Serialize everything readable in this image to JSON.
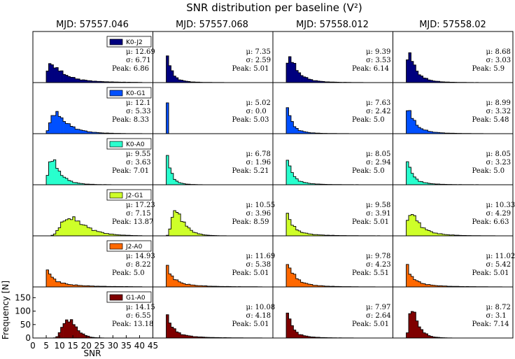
{
  "chart_data": {
    "type": "bar",
    "title": "SNR distribution per baseline (V²)",
    "xlabel": "SNR",
    "ylabel": "Frequency [N]",
    "xlim": [
      0,
      45
    ],
    "ylim": [
      0,
      190
    ],
    "xticks": [
      "0",
      "5",
      "10",
      "15",
      "20",
      "25",
      "30",
      "35",
      "40",
      "45"
    ],
    "yticks": [
      "0",
      "50",
      "100",
      "150"
    ],
    "columns": [
      "MJD: 57557.046",
      "MJD: 57557.068",
      "MJD: 57558.012",
      "MJD: 57558.02"
    ],
    "stat_labels": {
      "mu": "μ:",
      "sigma": "σ:",
      "peak": "Peak:"
    },
    "panels": [
      {
        "baseline": "K0-J2",
        "color": "#00007f",
        "stats": [
          [
            "12.69",
            "6.71",
            "6.86"
          ],
          [
            "7.35",
            "2.59",
            "5.01"
          ],
          [
            "9.39",
            "3.53",
            "6.14"
          ],
          [
            "8.68",
            "3.03",
            "5.9"
          ]
        ]
      },
      {
        "baseline": "K0-G1",
        "color": "#0050ff",
        "stats": [
          [
            "12.1",
            "5.33",
            "8.33"
          ],
          [
            "5.02",
            "0.0",
            "5.03"
          ],
          [
            "7.63",
            "2.42",
            "5.0"
          ],
          [
            "8.99",
            "3.32",
            "5.48"
          ]
        ]
      },
      {
        "baseline": "K0-A0",
        "color": "#29ffce",
        "stats": [
          [
            "9.55",
            "3.63",
            "7.01"
          ],
          [
            "6.78",
            "1.96",
            "5.21"
          ],
          [
            "8.05",
            "2.94",
            "5.0"
          ],
          [
            "8.05",
            "3.23",
            "5.0"
          ]
        ]
      },
      {
        "baseline": "J2-G1",
        "color": "#ceff29",
        "stats": [
          [
            "17.23",
            "7.15",
            "13.87"
          ],
          [
            "10.55",
            "3.96",
            "8.59"
          ],
          [
            "9.58",
            "3.91",
            "5.01"
          ],
          [
            "10.33",
            "4.29",
            "6.63"
          ]
        ]
      },
      {
        "baseline": "J2-A0",
        "color": "#ff6800",
        "stats": [
          [
            "14.93",
            "8.22",
            "5.0"
          ],
          [
            "11.69",
            "5.38",
            "5.01"
          ],
          [
            "9.78",
            "4.23",
            "5.51"
          ],
          [
            "11.02",
            "5.42",
            "5.01"
          ]
        ]
      },
      {
        "baseline": "G1-A0",
        "color": "#7f0000",
        "stats": [
          [
            "14.15",
            "6.55",
            "13.18"
          ],
          [
            "10.08",
            "4.18",
            "5.01"
          ],
          [
            "7.97",
            "2.64",
            "5.01"
          ],
          [
            "8.72",
            "3.1",
            "7.14"
          ]
        ]
      }
    ]
  }
}
